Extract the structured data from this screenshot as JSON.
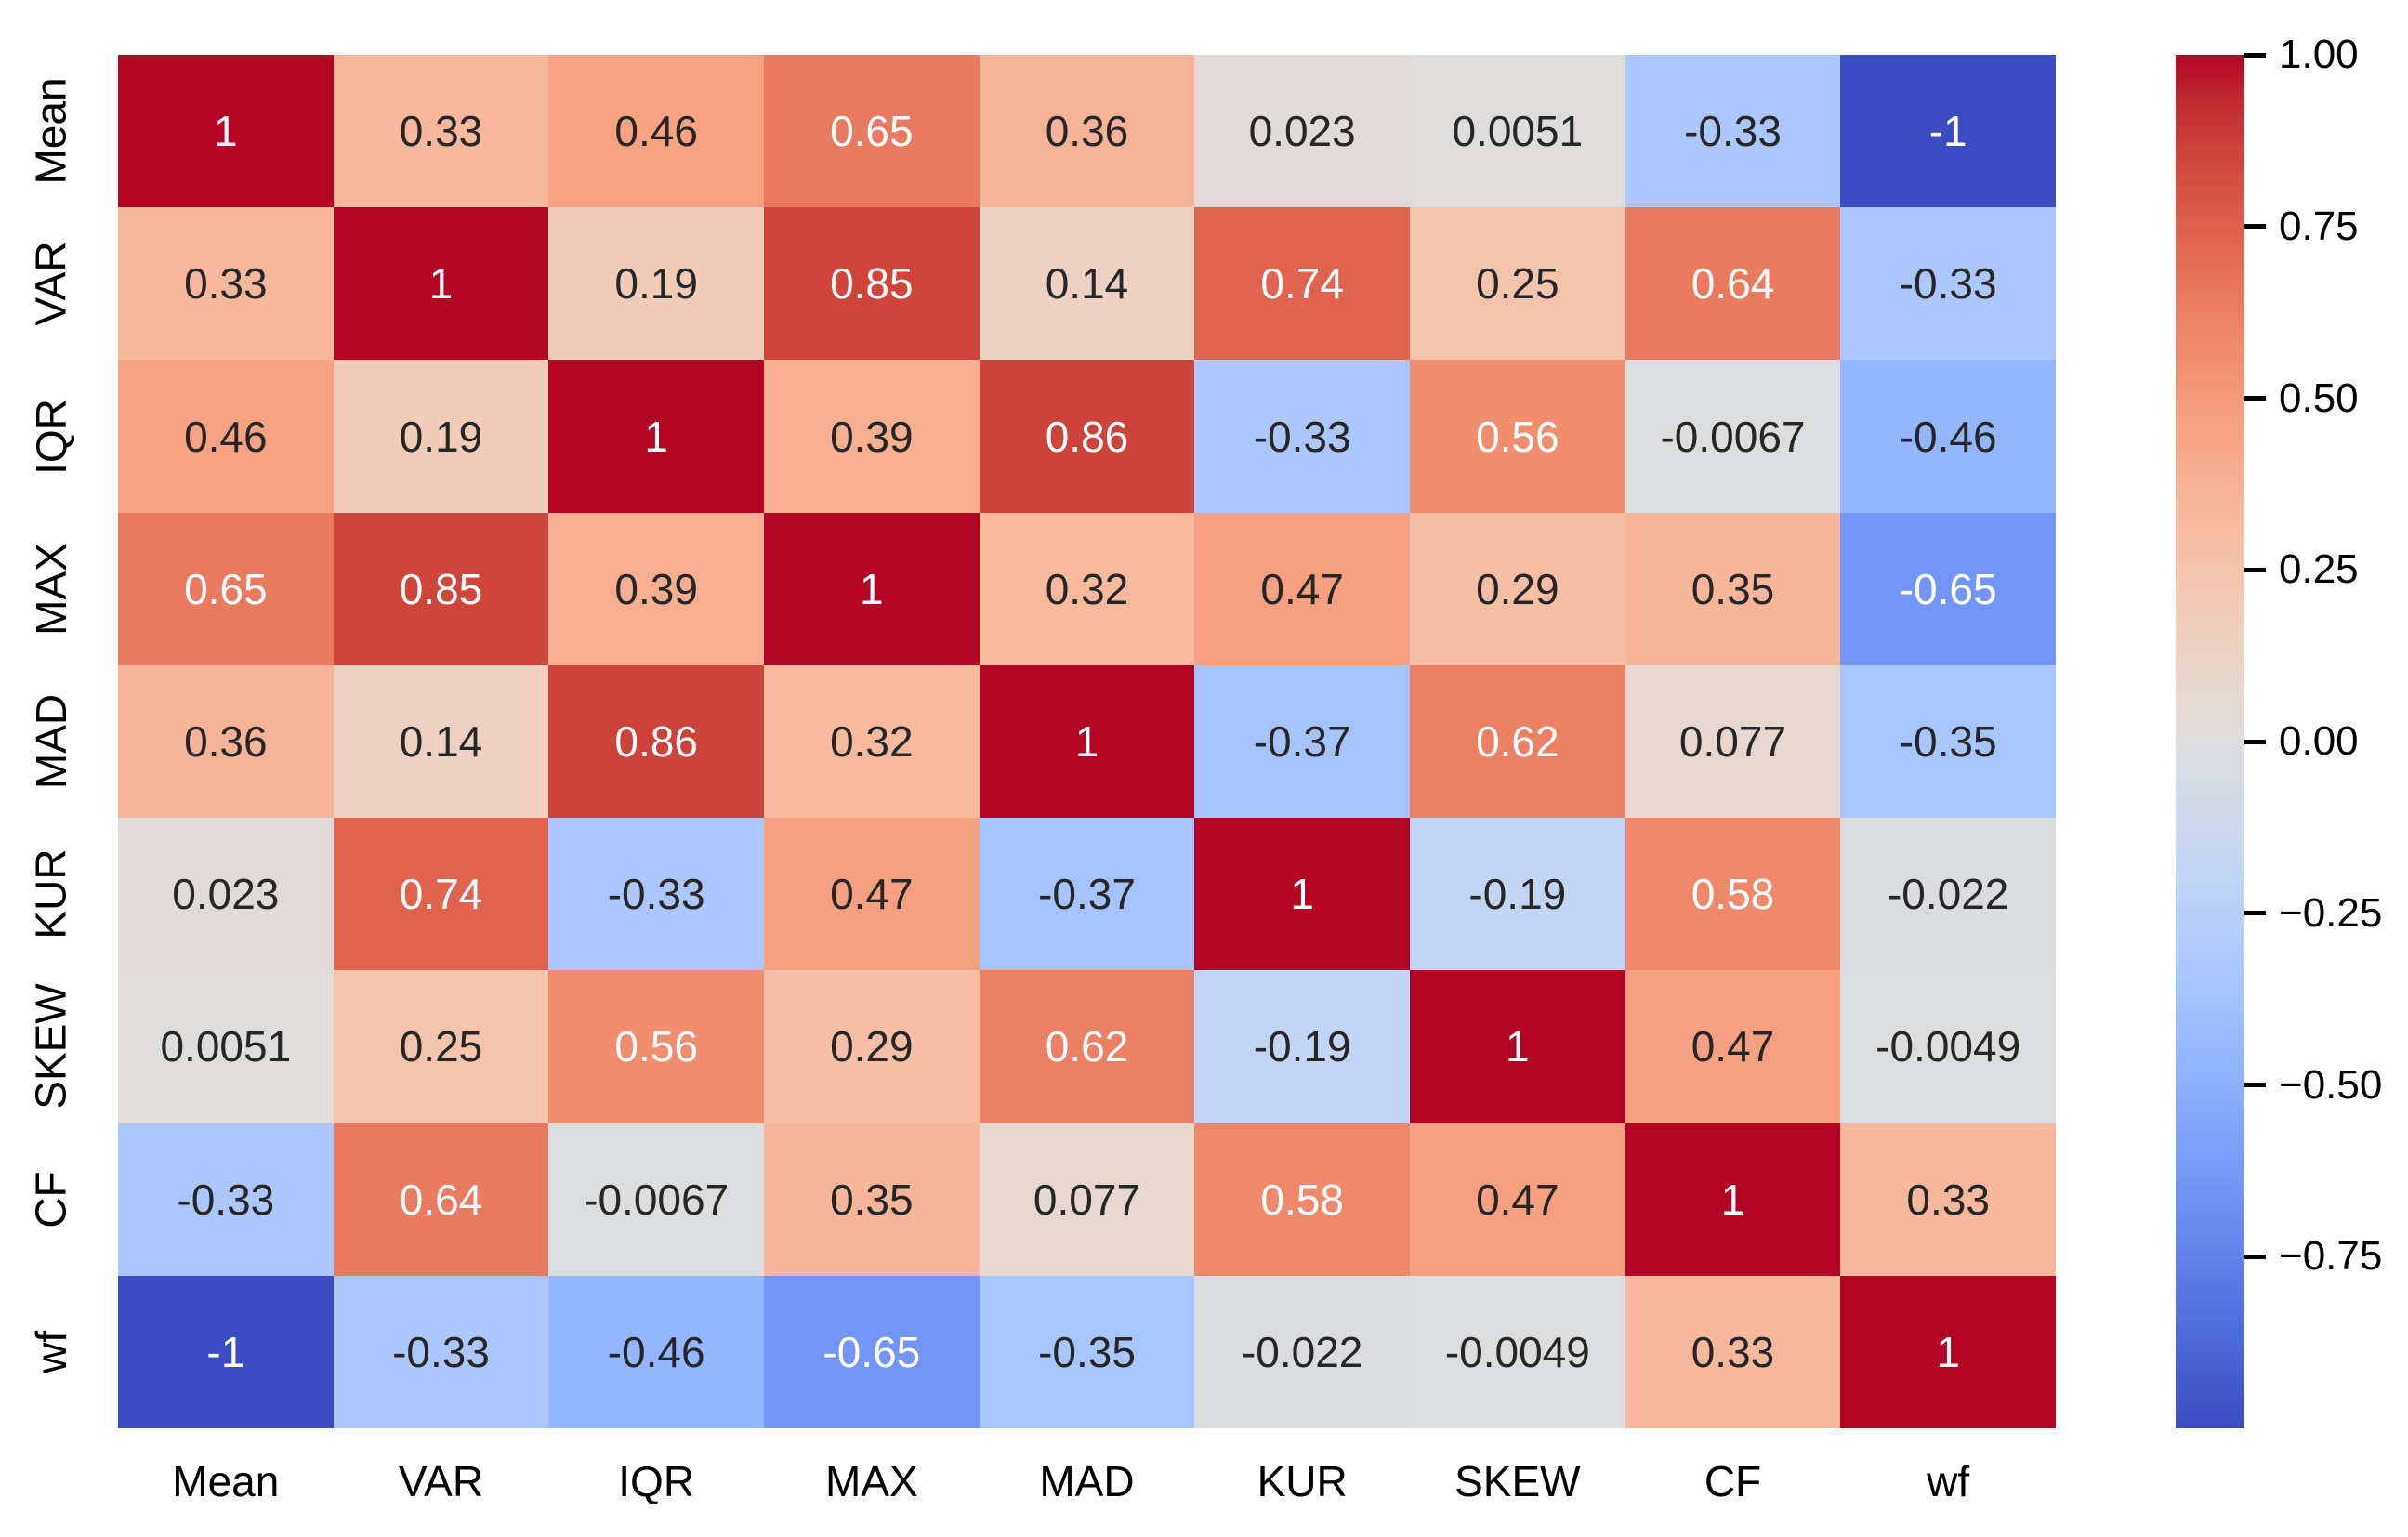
{
  "figure": {
    "background": "#ffffff",
    "description": "Correlation matrix heatmap of signal features with coolwarm colorbar"
  },
  "chart_data": {
    "type": "heatmap",
    "title": "",
    "x_labels": [
      "Mean",
      "VAR",
      "IQR",
      "MAX",
      "MAD",
      "KUR",
      "SKEW",
      "CF",
      "wf"
    ],
    "y_labels": [
      "Mean",
      "VAR",
      "IQR",
      "MAX",
      "MAD",
      "KUR",
      "SKEW",
      "CF",
      "wf"
    ],
    "matrix": [
      [
        1,
        0.33,
        0.46,
        0.65,
        0.36,
        0.023,
        0.0051,
        -0.33,
        -1
      ],
      [
        0.33,
        1,
        0.19,
        0.85,
        0.14,
        0.74,
        0.25,
        0.64,
        -0.33
      ],
      [
        0.46,
        0.19,
        1,
        0.39,
        0.86,
        -0.33,
        0.56,
        -0.0067,
        -0.46
      ],
      [
        0.65,
        0.85,
        0.39,
        1,
        0.32,
        0.47,
        0.29,
        0.35,
        -0.65
      ],
      [
        0.36,
        0.14,
        0.86,
        0.32,
        1,
        -0.37,
        0.62,
        0.077,
        -0.35
      ],
      [
        0.023,
        0.74,
        -0.33,
        0.47,
        -0.37,
        1,
        -0.19,
        0.58,
        -0.022
      ],
      [
        0.0051,
        0.25,
        0.56,
        0.29,
        0.62,
        -0.19,
        1,
        0.47,
        -0.0049
      ],
      [
        -0.33,
        0.64,
        -0.0067,
        0.35,
        0.077,
        0.58,
        0.47,
        1,
        0.33
      ],
      [
        -1,
        -0.33,
        -0.46,
        -0.65,
        -0.35,
        -0.022,
        -0.0049,
        0.33,
        1
      ]
    ],
    "cell_annotations": [
      [
        "1",
        "0.33",
        "0.46",
        "0.65",
        "0.36",
        "0.023",
        "0.0051",
        "-0.33",
        "-1"
      ],
      [
        "0.33",
        "1",
        "0.19",
        "0.85",
        "0.14",
        "0.74",
        "0.25",
        "0.64",
        "-0.33"
      ],
      [
        "0.46",
        "0.19",
        "1",
        "0.39",
        "0.86",
        "-0.33",
        "0.56",
        "-0.0067",
        "-0.46"
      ],
      [
        "0.65",
        "0.85",
        "0.39",
        "1",
        "0.32",
        "0.47",
        "0.29",
        "0.35",
        "-0.65"
      ],
      [
        "0.36",
        "0.14",
        "0.86",
        "0.32",
        "1",
        "-0.37",
        "0.62",
        "0.077",
        "-0.35"
      ],
      [
        "0.023",
        "0.74",
        "-0.33",
        "0.47",
        "-0.37",
        "1",
        "-0.19",
        "0.58",
        "-0.022"
      ],
      [
        "0.0051",
        "0.25",
        "0.56",
        "0.29",
        "0.62",
        "-0.19",
        "1",
        "0.47",
        "-0.0049"
      ],
      [
        "-0.33",
        "0.64",
        "-0.0067",
        "0.35",
        "0.077",
        "0.58",
        "0.47",
        "1",
        "0.33"
      ],
      [
        "-1",
        "-0.33",
        "-0.46",
        "-0.65",
        "-0.35",
        "-0.022",
        "-0.0049",
        "0.33",
        "1"
      ]
    ],
    "vmin": -1,
    "vmax": 1,
    "grid": false,
    "legend_position": "right-colorbar",
    "colormap": {
      "name": "coolwarm",
      "lut": [
        "#3B4CC0",
        "#445ACC",
        "#4D68D7",
        "#5775E1",
        "#6282EA",
        "#6C8EF1",
        "#779AF7",
        "#82A5FB",
        "#8DB0FE",
        "#98B9FF",
        "#A3C2FF",
        "#AEC9FD",
        "#B8D0F9",
        "#C2D5F4",
        "#CCD9EE",
        "#D5DBE6",
        "#DDDDDD",
        "#E5D8D1",
        "#ECD3C5",
        "#F1CCB9",
        "#F5C4AD",
        "#F7BBA0",
        "#F7B194",
        "#F7A687",
        "#F49A7B",
        "#F18D6F",
        "#EC7F63",
        "#E57058",
        "#DE604D",
        "#D55042",
        "#CB3E38",
        "#C0282F",
        "#B40426"
      ]
    },
    "colorbar": {
      "tick_labels": [
        "1.00",
        "0.75",
        "0.50",
        "0.25",
        "0.00",
        "−0.25",
        "−0.50",
        "−0.75"
      ],
      "tick_values": [
        1,
        0.75,
        0.5,
        0.25,
        0,
        -0.25,
        -0.5,
        -0.75
      ]
    },
    "text_colors": {
      "dark": "#262626",
      "light": "#ffffff"
    },
    "axis_label_color": "#000000"
  }
}
